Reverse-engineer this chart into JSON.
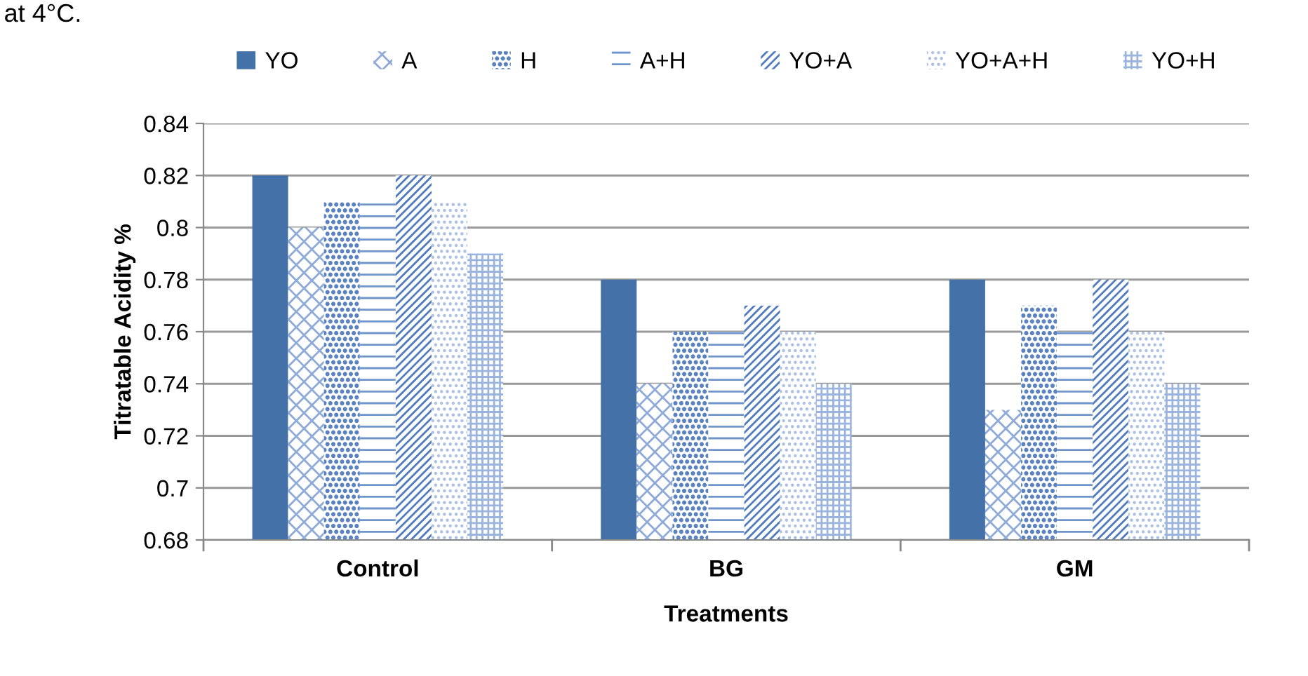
{
  "chart_data": {
    "type": "bar",
    "xlabel": "Treatments",
    "ylabel": "Titratable Acidity %",
    "annotations": [
      "at 4°C."
    ],
    "categories": [
      "Control",
      "BG",
      "GM"
    ],
    "series": [
      {
        "name": "YO",
        "color": "#4472a8",
        "values": [
          0.82,
          0.78,
          0.78
        ]
      },
      {
        "name": "A",
        "color": "#8eaad8",
        "values": [
          0.8,
          0.74,
          0.73
        ]
      },
      {
        "name": "H",
        "color": "#5a82c0",
        "values": [
          0.81,
          0.76,
          0.77
        ]
      },
      {
        "name": "A+H",
        "color": "#7095cc",
        "values": [
          0.81,
          0.76,
          0.76
        ]
      },
      {
        "name": "YO+A",
        "color": "#4f7bc0",
        "values": [
          0.82,
          0.77,
          0.78
        ]
      },
      {
        "name": "YO+A+H",
        "color": "#a9bfe3",
        "values": [
          0.81,
          0.76,
          0.76
        ]
      },
      {
        "name": "YO+H",
        "color": "#9ab4dd",
        "values": [
          0.79,
          0.74,
          0.74
        ]
      }
    ],
    "ylim": [
      0.68,
      0.84
    ],
    "yticks": [
      0.68,
      0.7,
      0.72,
      0.74,
      0.76,
      0.78,
      0.8,
      0.82,
      0.84
    ],
    "grid": "y",
    "legend": "top"
  }
}
